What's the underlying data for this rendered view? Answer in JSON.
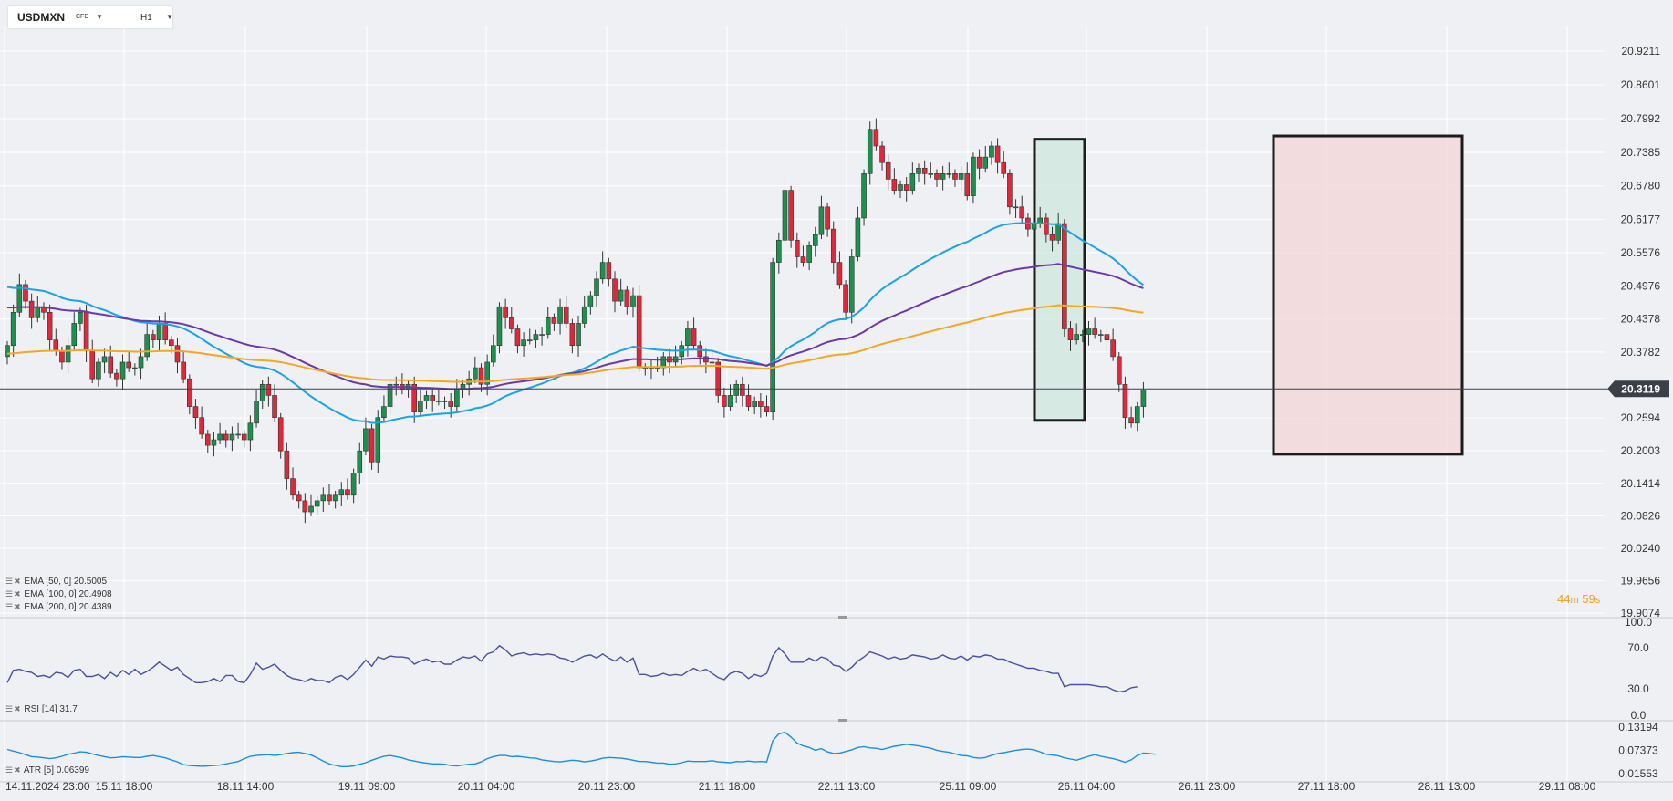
{
  "header": {
    "symbol": "USDMXN",
    "symbol_type": "CFD",
    "timeframe": "H1"
  },
  "colors": {
    "up_candle": "#1e8f4e",
    "down_candle": "#e0283a",
    "ema50": "#1aa3e6",
    "ema100": "#6a3aa8",
    "ema200": "#f5a623",
    "rsi_line": "#4a4f9e",
    "atr_line": "#1a8ee0",
    "price_tag": "#3a3f48",
    "countdown": "#f0a020",
    "box_green_fill": "#cfe9df",
    "box_red_fill": "#f2d7d7"
  },
  "countdown": {
    "minutes": "44",
    "seconds": "59",
    "m_label": "m",
    "s_label": "s"
  },
  "chart_data": [
    {
      "type": "candlestick",
      "title": "USDMXN",
      "timeframe": "H1",
      "y_ticks": [
        "20.9211",
        "20.8601",
        "20.7992",
        "20.7385",
        "20.6780",
        "20.6177",
        "20.5576",
        "20.4976",
        "20.4378",
        "20.3782",
        "20.3119",
        "20.2594",
        "20.2003",
        "20.1414",
        "20.0826",
        "20.0240",
        "19.9656",
        "19.9074"
      ],
      "ylim": [
        19.9074,
        20.9211
      ],
      "current_price": "20.3119",
      "x_ticks": [
        "14.11.2024  23:00",
        "15.11  18:00",
        "18.11  14:00",
        "19.11  09:00",
        "20.11  04:00",
        "20.11  23:00",
        "21.11  18:00",
        "22.11  13:00",
        "25.11  09:00",
        "26.11  04:00",
        "26.11  23:00",
        "27.11  18:00",
        "28.11  13:00",
        "29.11  08:00"
      ],
      "close": [
        20.39,
        20.45,
        20.5,
        20.47,
        20.44,
        20.46,
        20.45,
        20.4,
        20.38,
        20.36,
        20.39,
        20.43,
        20.45,
        20.38,
        20.33,
        20.36,
        20.37,
        20.34,
        20.33,
        20.36,
        20.35,
        20.35,
        20.37,
        20.41,
        20.4,
        20.43,
        20.4,
        20.39,
        20.36,
        20.33,
        20.28,
        20.26,
        20.23,
        20.21,
        20.22,
        20.23,
        20.22,
        20.23,
        20.23,
        20.22,
        20.25,
        20.29,
        20.32,
        20.3,
        20.26,
        20.2,
        20.15,
        20.12,
        20.11,
        20.09,
        20.1,
        20.11,
        20.12,
        20.11,
        20.12,
        20.13,
        20.12,
        20.16,
        20.2,
        20.24,
        20.18,
        20.26,
        20.28,
        20.32,
        20.32,
        20.31,
        20.32,
        20.27,
        20.29,
        20.3,
        20.29,
        20.29,
        20.29,
        20.28,
        20.31,
        20.32,
        20.33,
        20.35,
        20.32,
        20.36,
        20.39,
        20.46,
        20.44,
        20.42,
        20.39,
        20.4,
        20.4,
        20.41,
        20.41,
        20.44,
        20.43,
        20.46,
        20.43,
        20.39,
        20.43,
        20.46,
        20.48,
        20.51,
        20.54,
        20.51,
        20.47,
        20.49,
        20.46,
        20.48,
        20.35,
        20.35,
        20.35,
        20.35,
        20.37,
        20.36,
        20.37,
        20.39,
        20.42,
        20.39,
        20.37,
        20.36,
        20.36,
        20.3,
        20.28,
        20.3,
        20.32,
        20.3,
        20.28,
        20.29,
        20.28,
        20.27,
        20.54,
        20.58,
        20.67,
        20.58,
        20.55,
        20.54,
        20.57,
        20.59,
        20.64,
        20.6,
        20.54,
        20.5,
        20.45,
        20.55,
        20.62,
        20.7,
        20.78,
        20.75,
        20.72,
        20.69,
        20.67,
        20.68,
        20.67,
        20.7,
        20.71,
        20.7,
        20.7,
        20.69,
        20.7,
        20.7,
        20.69,
        20.7,
        20.66,
        20.73,
        20.71,
        20.73,
        20.75,
        20.72,
        20.7,
        20.64,
        20.64,
        20.62,
        20.6,
        20.61,
        20.62,
        20.59,
        20.58,
        20.61,
        20.42,
        20.4,
        20.41,
        20.41,
        20.42,
        20.41,
        20.41,
        20.4,
        20.37,
        20.32,
        20.26,
        20.25,
        20.28,
        20.31
      ],
      "series": [
        {
          "name": "EMA [50, 0] 20.5005",
          "style": "line"
        },
        {
          "name": "EMA [100, 0] 20.4908",
          "style": "line"
        },
        {
          "name": "EMA [200, 0] 20.4389",
          "style": "line"
        }
      ],
      "ema50_last": "20.5005",
      "ema100_last": "20.4908",
      "ema200_last": "20.4389",
      "annotations": [
        {
          "type": "rectangle",
          "fill": "green",
          "time_start": "25.11 ~15:00",
          "time_end": "25.11 ~22:00",
          "price_top": 20.762,
          "price_bottom": 20.255
        },
        {
          "type": "rectangle",
          "fill": "red",
          "time_start": "26.11 ~21:00",
          "time_end": "28.11 ~08:00",
          "price_top": 20.768,
          "price_bottom": 20.194
        }
      ],
      "grid": true
    },
    {
      "type": "line",
      "title": "RSI [14] 31.7",
      "y_ticks": [
        "100.0",
        "70.0",
        "30.0",
        "0.0"
      ],
      "ylim": [
        0,
        100
      ],
      "values": [
        36,
        48,
        49,
        47,
        46,
        42,
        43,
        41,
        46,
        45,
        41,
        48,
        49,
        42,
        42,
        44,
        40,
        46,
        42,
        48,
        44,
        49,
        44,
        47,
        51,
        56,
        52,
        48,
        51,
        44,
        40,
        36,
        36,
        37,
        40,
        37,
        43,
        43,
        37,
        36,
        44,
        55,
        49,
        51,
        54,
        48,
        43,
        40,
        39,
        37,
        40,
        38,
        38,
        36,
        41,
        43,
        39,
        44,
        51,
        58,
        52,
        61,
        59,
        62,
        61,
        61,
        60,
        54,
        57,
        59,
        56,
        57,
        54,
        54,
        58,
        61,
        60,
        62,
        57,
        64,
        66,
        72,
        68,
        62,
        64,
        65,
        63,
        64,
        63,
        64,
        63,
        60,
        59,
        56,
        59,
        62,
        63,
        60,
        64,
        60,
        57,
        61,
        56,
        60,
        44,
        44,
        42,
        43,
        45,
        43,
        44,
        43,
        47,
        50,
        47,
        49,
        45,
        41,
        39,
        45,
        47,
        45,
        40,
        44,
        42,
        45,
        62,
        70,
        64,
        56,
        56,
        56,
        60,
        57,
        61,
        59,
        53,
        52,
        47,
        51,
        57,
        61,
        66,
        64,
        62,
        59,
        61,
        59,
        60,
        63,
        62,
        61,
        59,
        60,
        63,
        60,
        59,
        62,
        58,
        62,
        61,
        63,
        62,
        59,
        59,
        56,
        54,
        52,
        50,
        50,
        48,
        47,
        45,
        45,
        32,
        34,
        34,
        34,
        34,
        33,
        32,
        32,
        29,
        27,
        28,
        31,
        32
      ]
    },
    {
      "type": "line",
      "title": "ATR [5] 0.06399",
      "y_ticks": [
        "0.13194",
        "0.07373",
        "0.01553"
      ],
      "ylim": [
        0.01553,
        0.13194
      ],
      "values": [
        0.076,
        0.072,
        0.068,
        0.063,
        0.058,
        0.057,
        0.055,
        0.053,
        0.055,
        0.059,
        0.064,
        0.067,
        0.07,
        0.069,
        0.065,
        0.061,
        0.058,
        0.055,
        0.056,
        0.058,
        0.057,
        0.056,
        0.056,
        0.059,
        0.061,
        0.058,
        0.055,
        0.05,
        0.045,
        0.038,
        0.036,
        0.035,
        0.034,
        0.035,
        0.036,
        0.037,
        0.04,
        0.043,
        0.046,
        0.053,
        0.059,
        0.061,
        0.062,
        0.063,
        0.061,
        0.063,
        0.066,
        0.068,
        0.069,
        0.066,
        0.062,
        0.055,
        0.047,
        0.04,
        0.036,
        0.033,
        0.033,
        0.035,
        0.039,
        0.043,
        0.049,
        0.054,
        0.059,
        0.061,
        0.058,
        0.055,
        0.05,
        0.047,
        0.044,
        0.042,
        0.04,
        0.04,
        0.039,
        0.036,
        0.035,
        0.037,
        0.039,
        0.04,
        0.045,
        0.053,
        0.058,
        0.061,
        0.061,
        0.058,
        0.059,
        0.057,
        0.055,
        0.054,
        0.05,
        0.048,
        0.046,
        0.045,
        0.047,
        0.049,
        0.048,
        0.045,
        0.047,
        0.05,
        0.054,
        0.056,
        0.055,
        0.054,
        0.052,
        0.049,
        0.046,
        0.046,
        0.044,
        0.042,
        0.042,
        0.039,
        0.04,
        0.043,
        0.047,
        0.046,
        0.046,
        0.046,
        0.048,
        0.045,
        0.044,
        0.043,
        0.046,
        0.045,
        0.047,
        0.045,
        0.046,
        0.045,
        0.098,
        0.115,
        0.119,
        0.107,
        0.092,
        0.085,
        0.081,
        0.074,
        0.078,
        0.07,
        0.066,
        0.067,
        0.071,
        0.075,
        0.081,
        0.083,
        0.08,
        0.079,
        0.076,
        0.08,
        0.084,
        0.086,
        0.089,
        0.087,
        0.085,
        0.082,
        0.079,
        0.074,
        0.071,
        0.069,
        0.065,
        0.061,
        0.06,
        0.056,
        0.054,
        0.056,
        0.061,
        0.066,
        0.068,
        0.071,
        0.074,
        0.076,
        0.077,
        0.075,
        0.07,
        0.064,
        0.062,
        0.06,
        0.055,
        0.052,
        0.049,
        0.054,
        0.059,
        0.063,
        0.059,
        0.056,
        0.053,
        0.049,
        0.044,
        0.05,
        0.061,
        0.067,
        0.066,
        0.064
      ]
    }
  ],
  "indicator_labels": {
    "ema50": "EMA  [50,  0]  20.5005",
    "ema100": "EMA  [100,  0]  20.4908",
    "ema200": "EMA  [200,  0]  20.4389",
    "rsi": "RSI  [14]  31.7",
    "atr": "ATR  [5]  0.06399"
  },
  "icons": [
    "settings-icon",
    "close-icon",
    "dropdown-icon"
  ]
}
